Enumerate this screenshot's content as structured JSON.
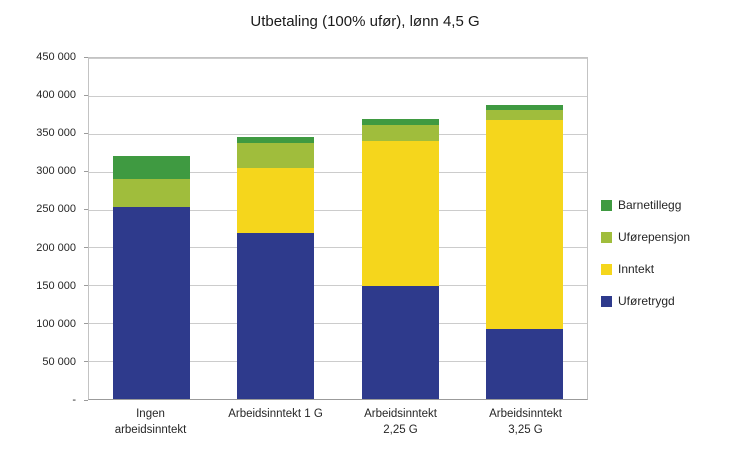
{
  "chart_data": {
    "type": "bar",
    "stacked": true,
    "title": "Utbetaling (100% ufør), lønn 4,5 G",
    "categories": [
      "Ingen\narbeidsinntekt",
      "Arbeidsinntekt 1 G",
      "Arbeidsinntekt\n2,25 G",
      "Arbeidsinntekt\n3,25 G"
    ],
    "series": [
      {
        "name": "Uføretrygd",
        "color": "#2E3A8C",
        "values": [
          253000,
          219000,
          149000,
          93000
        ]
      },
      {
        "name": "Inntekt",
        "color": "#F5D61C",
        "values": [
          0,
          86000,
          192000,
          275000
        ]
      },
      {
        "name": "Uførepensjon",
        "color": "#A0BD3C",
        "values": [
          37000,
          33000,
          21000,
          13000
        ]
      },
      {
        "name": "Barnetillegg",
        "color": "#3F9A41",
        "values": [
          31000,
          8000,
          7000,
          7000
        ]
      }
    ],
    "legend": {
      "position": "right",
      "order": [
        "Barnetillegg",
        "Uførepensjon",
        "Inntekt",
        "Uføretrygd"
      ]
    },
    "ylim": [
      0,
      450000
    ],
    "y_ticks": [
      "450 000",
      "400 000",
      "350 000",
      "300 000",
      "250 000",
      "200 000",
      "150 000",
      "100 000",
      "50 000",
      "-"
    ],
    "grid": true,
    "xlabel": "",
    "ylabel": ""
  }
}
